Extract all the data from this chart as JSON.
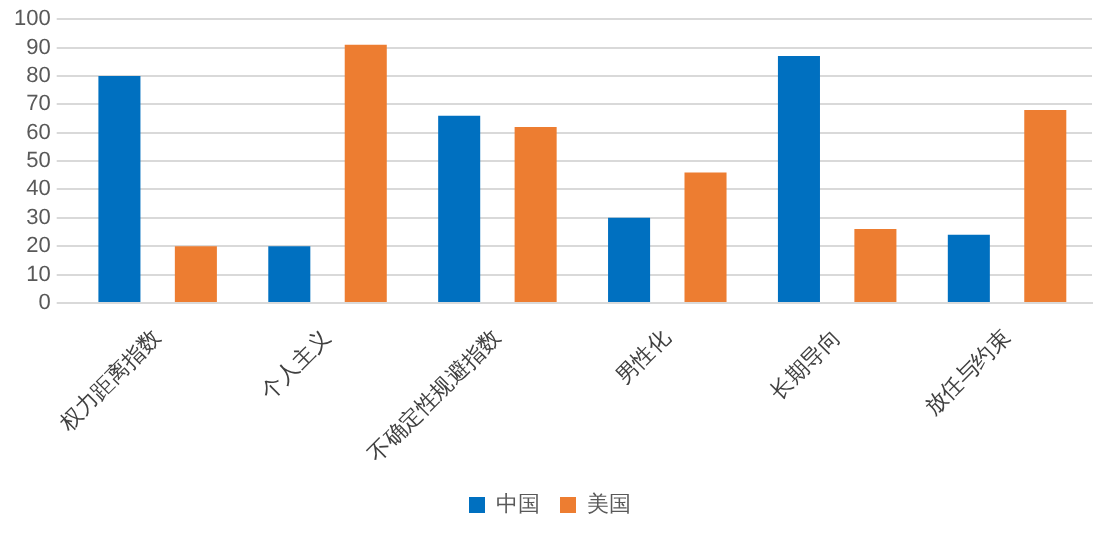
{
  "chart_data": {
    "type": "bar",
    "categories": [
      "权力距离指数",
      "个人主义",
      "不确定性规避指数",
      "男性化",
      "长期导向",
      "放任与约束"
    ],
    "series": [
      {
        "name": "中国",
        "color": "#0070c0",
        "values": [
          80,
          20,
          66,
          30,
          87,
          24
        ]
      },
      {
        "name": "美国",
        "color": "#ed7d31",
        "values": [
          20,
          91,
          62,
          46,
          26,
          68
        ]
      }
    ],
    "ylim": [
      0,
      100
    ],
    "yticks": [
      0,
      10,
      20,
      30,
      40,
      50,
      60,
      70,
      80,
      90,
      100
    ],
    "grid": "y",
    "legend": "bottom"
  }
}
